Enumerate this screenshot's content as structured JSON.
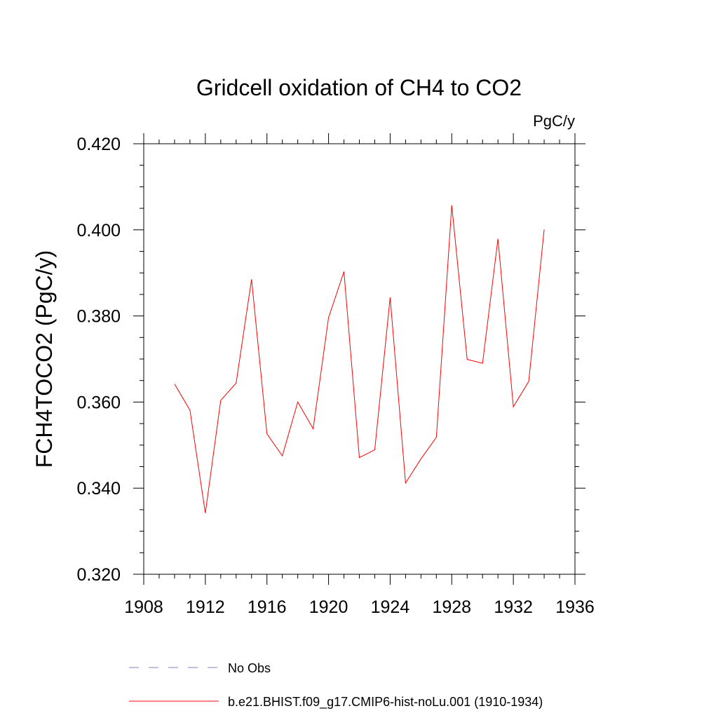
{
  "chart_data": {
    "type": "line",
    "title": "Gridcell oxidation of CH4 to CO2",
    "units_label": "PgC/y",
    "xlabel": "",
    "ylabel": "FCH4TOCO2  (PgC/y)",
    "xlim": [
      1908,
      1936
    ],
    "ylim": [
      0.32,
      0.42
    ],
    "x_ticks": [
      1908,
      1912,
      1916,
      1920,
      1924,
      1928,
      1932,
      1936
    ],
    "x_tick_labels": [
      "1908",
      "1912",
      "1916",
      "1920",
      "1924",
      "1928",
      "1932",
      "1936"
    ],
    "y_ticks": [
      0.32,
      0.34,
      0.36,
      0.38,
      0.4,
      0.42
    ],
    "y_tick_labels": [
      "0.320",
      "0.340",
      "0.360",
      "0.380",
      "0.400",
      "0.420"
    ],
    "grid": false,
    "legend_position": "bottom",
    "series": [
      {
        "name": "No Obs",
        "color": "#7f7fd0",
        "dash": "dashed",
        "x": [],
        "y": []
      },
      {
        "name": "b.e21.BHIST.f09_g17.CMIP6-hist-noLu.001 (1910-1934)",
        "color": "#ff0000",
        "dash": "solid",
        "x": [
          1910,
          1911,
          1912,
          1913,
          1914,
          1915,
          1916,
          1917,
          1918,
          1919,
          1920,
          1921,
          1922,
          1923,
          1924,
          1925,
          1926,
          1927,
          1928,
          1929,
          1930,
          1931,
          1932,
          1933,
          1934
        ],
        "y": [
          0.3642,
          0.3581,
          0.3342,
          0.3604,
          0.3644,
          0.3885,
          0.3526,
          0.3475,
          0.36,
          0.3538,
          0.3796,
          0.3903,
          0.3471,
          0.3489,
          0.3843,
          0.3412,
          0.3468,
          0.3518,
          0.4057,
          0.3699,
          0.369,
          0.3979,
          0.3589,
          0.3648,
          0.4001
        ]
      }
    ]
  }
}
